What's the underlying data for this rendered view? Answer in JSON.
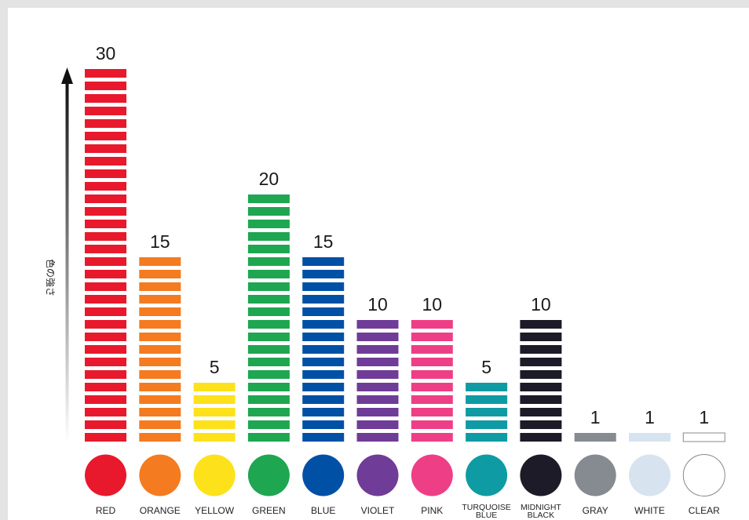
{
  "chart_data": {
    "type": "bar",
    "ylabel": "色の強さ",
    "ylim": [
      0,
      30
    ],
    "categories": [
      {
        "label": [
          "RED"
        ],
        "value": 30,
        "color": "#e8192c"
      },
      {
        "label": [
          "ORANGE"
        ],
        "value": 15,
        "color": "#f47b20"
      },
      {
        "label": [
          "YELLOW"
        ],
        "value": 5,
        "color": "#fde11b"
      },
      {
        "label": [
          "GREEN"
        ],
        "value": 20,
        "color": "#1ea650"
      },
      {
        "label": [
          "BLUE"
        ],
        "value": 15,
        "color": "#0050a6"
      },
      {
        "label": [
          "VIOLET"
        ],
        "value": 10,
        "color": "#6f3c97"
      },
      {
        "label": [
          "PINK"
        ],
        "value": 10,
        "color": "#ee3f86"
      },
      {
        "label": [
          "TURQUOISE",
          "BLUE"
        ],
        "value": 5,
        "color": "#0e9ba3"
      },
      {
        "label": [
          "MIDNIGHT",
          "BLACK"
        ],
        "value": 10,
        "color": "#1c1b27"
      },
      {
        "label": [
          "GRAY"
        ],
        "value": 1,
        "color": "#858b90"
      },
      {
        "label": [
          "WHITE"
        ],
        "value": 1,
        "color": "#d7e3ef"
      },
      {
        "label": [
          "CLEAR"
        ],
        "value": 1,
        "color": "#ffffff",
        "outline": "#888888"
      }
    ]
  }
}
